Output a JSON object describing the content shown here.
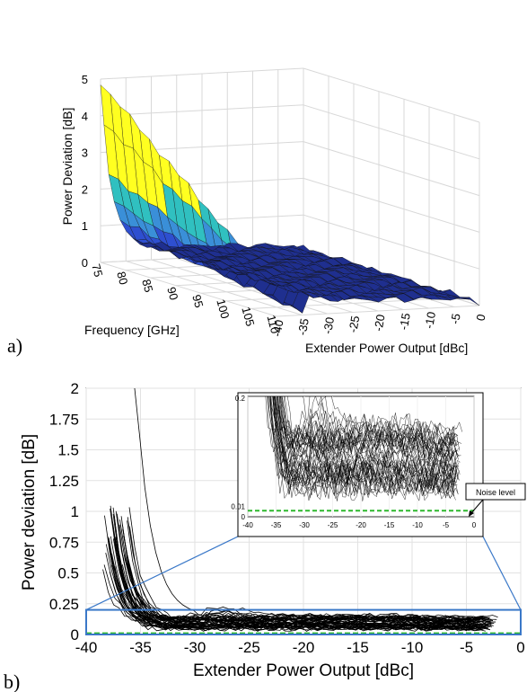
{
  "panels": {
    "a": "a)",
    "b": "b)"
  },
  "chart_data": [
    {
      "type": "surface",
      "panel": "a)",
      "xlabel": "Frequency [GHz]",
      "ylabel": "Extender Power Output [dBc]",
      "zlabel": "Power Deviation [dB]",
      "x_ticks": [
        "75",
        "80",
        "85",
        "90",
        "95",
        "100",
        "105",
        "110"
      ],
      "y_ticks": [
        "-40",
        "-35",
        "-30",
        "-25",
        "-20",
        "-15",
        "-10",
        "-5",
        "0"
      ],
      "z_ticks": [
        "0",
        "1",
        "2",
        "3",
        "4",
        "5"
      ],
      "xlim": [
        75,
        110
      ],
      "ylim": [
        -40,
        0
      ],
      "zlim": [
        0,
        5
      ],
      "peak": {
        "frequency": 75,
        "power": -40,
        "deviation": 4.9
      },
      "surface_profile_along_power": {
        "power": [
          -40,
          -38.5,
          -37,
          -35.5,
          -34,
          -32,
          -30,
          -25,
          -20,
          -15,
          -10,
          -5,
          0
        ],
        "deviation": [
          4.9,
          2.5,
          1.4,
          0.9,
          0.6,
          0.45,
          0.4,
          0.35,
          0.3,
          0.28,
          0.25,
          0.22,
          0.1
        ]
      },
      "colormap": [
        "#1f2f8f",
        "#2e4fd0",
        "#3a8fd8",
        "#30c0c0",
        "#ffff20"
      ]
    },
    {
      "type": "line",
      "panel": "b)",
      "xlabel": "Extender Power Output [dBc]",
      "ylabel": "Power deviation [dB]",
      "xlim": [
        -40,
        0
      ],
      "ylim": [
        0,
        2
      ],
      "x_ticks": [
        "-40",
        "-35",
        "-30",
        "-25",
        "-20",
        "-15",
        "-10",
        "-5",
        "0"
      ],
      "y_ticks": [
        "0",
        "0.25",
        "0.5",
        "0.75",
        "1",
        "1.25",
        "1.5",
        "1.75",
        "2"
      ],
      "zoom_box": {
        "x": [
          -40,
          0
        ],
        "y": [
          0,
          0.2
        ]
      },
      "noise_level": 0.01,
      "series_note": "one curve per frequency, approx. 45 curves",
      "inset": {
        "xlim": [
          -40,
          0
        ],
        "ylim": [
          0,
          0.2
        ],
        "x_ticks": [
          "-40",
          "-35",
          "-30",
          "-25",
          "-20",
          "-15",
          "-10",
          "-5",
          "0"
        ],
        "y_ticks": [
          "0",
          "0.01",
          "0.2"
        ],
        "annotation": "Noise level"
      },
      "colors": {
        "curves": "#000000",
        "noise": "#2db82d",
        "zoom": "#3a78c8"
      }
    }
  ]
}
